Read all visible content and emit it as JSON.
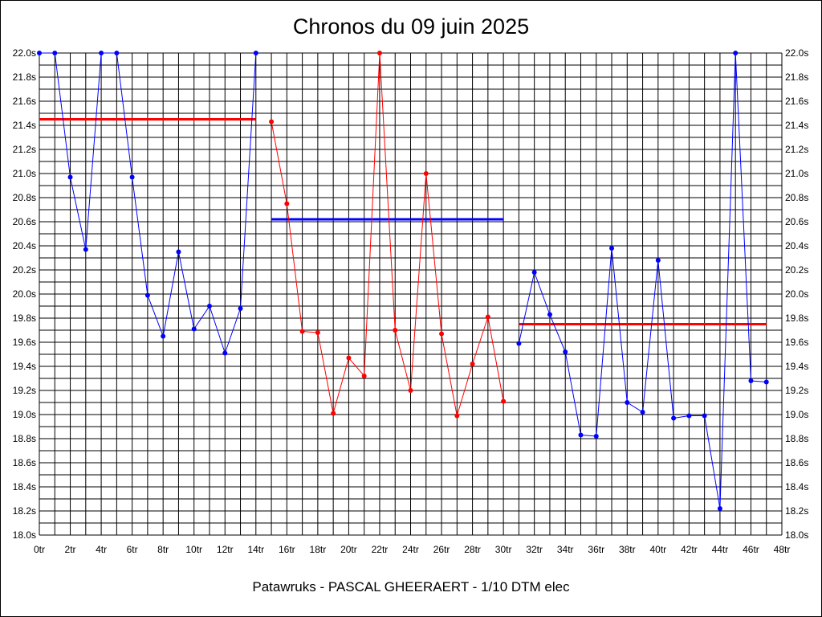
{
  "chart_data": {
    "type": "line",
    "title": "Chronos du 09 juin 2025",
    "footer": "Patawruks - PASCAL GHEERAERT - 1/10 DTM elec",
    "xlim": [
      0,
      48
    ],
    "ylim": [
      18.0,
      22.0
    ],
    "x_ticks": [
      "0tr",
      "2tr",
      "4tr",
      "6tr",
      "8tr",
      "10tr",
      "12tr",
      "14tr",
      "16tr",
      "18tr",
      "20tr",
      "22tr",
      "24tr",
      "26tr",
      "28tr",
      "30tr",
      "32tr",
      "34tr",
      "36tr",
      "38tr",
      "40tr",
      "42tr",
      "44tr",
      "46tr",
      "48tr"
    ],
    "y_ticks": [
      "18.0s",
      "18.2s",
      "18.4s",
      "18.6s",
      "18.8s",
      "19.0s",
      "19.2s",
      "19.4s",
      "19.6s",
      "19.8s",
      "20.0s",
      "20.2s",
      "20.4s",
      "20.6s",
      "20.8s",
      "21.0s",
      "21.2s",
      "21.4s",
      "21.6s",
      "21.8s",
      "22.0s"
    ],
    "grid": true,
    "series": [
      {
        "color": "#0000ff",
        "x": [
          0,
          1,
          2,
          3,
          4,
          5,
          6,
          7,
          8,
          9,
          10,
          11,
          12,
          13,
          14
        ],
        "y": [
          22.0,
          22.0,
          20.97,
          20.37,
          22.0,
          22.0,
          20.97,
          19.99,
          19.65,
          20.35,
          19.71,
          19.9,
          19.51,
          19.88,
          22.0
        ]
      },
      {
        "color": "#ff0000",
        "x": [
          15,
          16,
          17,
          18,
          19,
          20,
          21,
          22,
          23,
          24,
          25,
          26,
          27,
          28,
          29,
          30
        ],
        "y": [
          21.43,
          20.75,
          19.69,
          19.68,
          19.01,
          19.47,
          19.32,
          22.0,
          19.7,
          19.2,
          21.0,
          19.67,
          18.99,
          19.42,
          19.81,
          19.11
        ]
      },
      {
        "color": "#0000ff",
        "x": [
          31,
          32,
          33,
          34,
          35,
          36,
          37,
          38,
          39,
          40,
          41,
          42,
          43,
          44,
          45,
          46,
          47
        ],
        "y": [
          19.59,
          20.18,
          19.83,
          19.52,
          18.83,
          18.82,
          20.38,
          19.1,
          19.02,
          20.28,
          18.97,
          18.99,
          18.99,
          18.22,
          22.0,
          19.28,
          19.27
        ]
      }
    ],
    "averages": [
      {
        "color": "#ff0000",
        "x": [
          0,
          14
        ],
        "y": 21.45
      },
      {
        "color": "#0000ff",
        "x": [
          15,
          30
        ],
        "y": 20.62
      },
      {
        "color": "#ff0000",
        "x": [
          31,
          47
        ],
        "y": 19.75
      }
    ]
  }
}
